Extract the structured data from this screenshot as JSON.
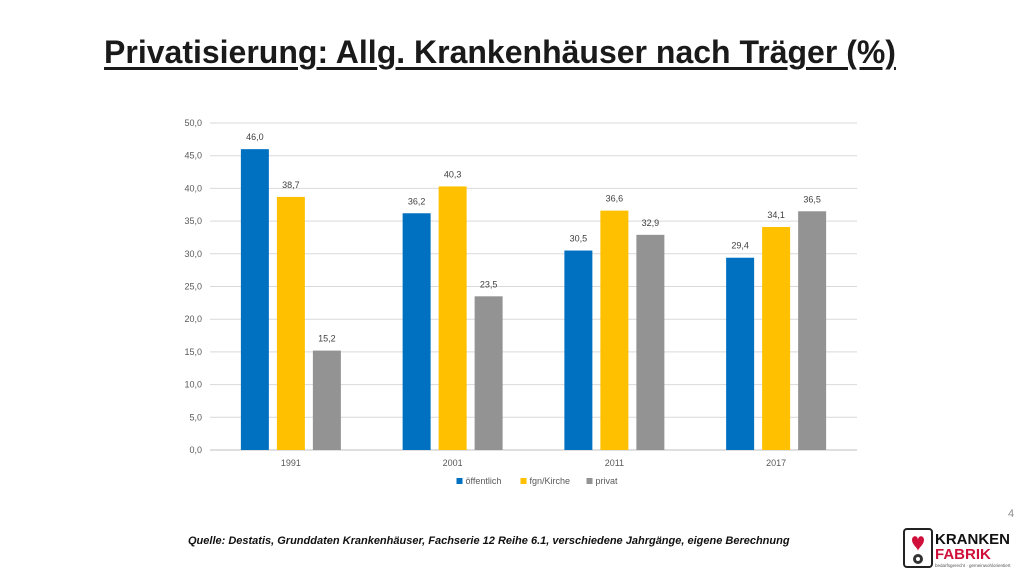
{
  "slide": {
    "title": "Privatisierung: Allg. Krankenhäuser nach Träger (%)",
    "source": "Quelle: Destatis, Grunddaten Krankenhäuser, Fachserie 12 Reihe 6.1, verschiedene Jahrgänge, eigene Berechnung",
    "page_number": "4"
  },
  "logo": {
    "line1": "KRANKEN",
    "line2": "FABRIK",
    "tagline": "bedarfsgerecht · gemeinwohlorientiert"
  },
  "chart_data": {
    "type": "bar",
    "categories": [
      "1991",
      "2001",
      "2011",
      "2017"
    ],
    "series": [
      {
        "name": "öffentlich",
        "color": "#0070C0",
        "values": [
          46.0,
          36.2,
          30.5,
          29.4
        ],
        "labels": [
          "46,0",
          "36,2",
          "30,5",
          "29,4"
        ]
      },
      {
        "name": "fgn/Kirche",
        "color": "#FFC000",
        "values": [
          38.7,
          40.3,
          36.6,
          34.1
        ],
        "labels": [
          "38,7",
          "40,3",
          "36,6",
          "34,1"
        ]
      },
      {
        "name": "privat",
        "color": "#939393",
        "values": [
          15.2,
          23.5,
          32.9,
          36.5
        ],
        "labels": [
          "15,2",
          "23,5",
          "32,9",
          "36,5"
        ]
      }
    ],
    "ylim": [
      0,
      50
    ],
    "yticks": [
      "0,0",
      "5,0",
      "10,0",
      "15,0",
      "20,0",
      "25,0",
      "30,0",
      "35,0",
      "40,0",
      "45,0",
      "50,0"
    ],
    "grid": true,
    "legend": "bottom",
    "title": "",
    "xlabel": "",
    "ylabel": ""
  }
}
